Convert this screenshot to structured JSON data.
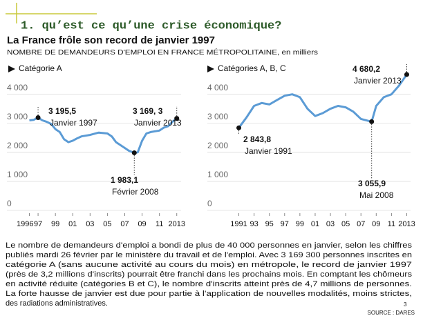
{
  "slide_title": "1. qu’est ce qu’une crise économique?",
  "heading": "La France frôle son record de janvier 1997",
  "subtitle": "NOMBRE DE DEMANDEURS D'EMPLOI EN FRANCE MÉTROPOLITAINE, en milliers",
  "paragraph": [
    "Le nombre de demandeurs d'emploi a bondi de plus de 40 000 personnes en janvier, selon les chiffres",
    "publiés mardi 26 février par le ministère du travail et de l'emploi. Avec 3 169 300 personnes inscrites en",
    "catégorie A (sans aucune activité au cours du mois) en métropole, le record de janvier 1997",
    "(près de 3,2 millions d'inscrits) pourrait être franchi dans les prochains mois. En comptant les chômeurs",
    "en activité réduite (catégories B et C), le nombre d'inscrits atteint près de 4,7 millions de personnes.",
    "La forte hausse de janvier est due pour partie à l'application de nouvelles modalités, moins strictes,",
    "des radiations administratives."
  ],
  "source": "SOURCE : DARES",
  "page_number": "3",
  "chart_data": [
    {
      "type": "line",
      "title": "Catégorie A",
      "color": "#5b9bd5",
      "x": [
        1996,
        1996.5,
        1997,
        1997.5,
        1998,
        1998.5,
        1999,
        1999.5,
        2000,
        2000.5,
        2001,
        2001.5,
        2002,
        2003,
        2004,
        2005,
        2005.5,
        2006,
        2007,
        2007.5,
        2008.1,
        2008.5,
        2009,
        2009.5,
        2010,
        2011,
        2011.5,
        2012,
        2012.5,
        2013
      ],
      "values": [
        3100,
        3120,
        3195.5,
        3100,
        3050,
        2980,
        2800,
        2700,
        2450,
        2350,
        2400,
        2480,
        2550,
        2600,
        2680,
        2650,
        2550,
        2350,
        2150,
        2050,
        1983.1,
        2000,
        2400,
        2650,
        2700,
        2750,
        2850,
        2900,
        3050,
        3169.3
      ],
      "xlim": [
        1995,
        2013.5
      ],
      "ylim": [
        0,
        4800
      ],
      "xticks": [
        1996,
        {
          "value": 1997,
          "label": "97"
        },
        {
          "value": 1999,
          "label": "99"
        },
        {
          "value": 2001,
          "label": "01"
        },
        {
          "value": 2003,
          "label": "03"
        },
        {
          "value": 2005,
          "label": "05"
        },
        {
          "value": 2007,
          "label": "07"
        },
        {
          "value": 2009,
          "label": "09"
        },
        {
          "value": 2011,
          "label": "11"
        },
        2013
      ],
      "yticks": [
        0,
        {
          "value": 1000,
          "label": "1 000"
        },
        {
          "value": 2000,
          "label": "2 000"
        },
        {
          "value": 3000,
          "label": "3 000"
        },
        {
          "value": 4000,
          "label": "4 000"
        }
      ],
      "annotations": [
        {
          "x": 1997,
          "value": 3195.5,
          "value_label": "3 195,5",
          "text": "Janvier 1997"
        },
        {
          "x": 2013,
          "value": 3169.3,
          "value_label": "3 169, 3",
          "text": "Janvier 2013"
        },
        {
          "x": 2008.1,
          "value": 1983.1,
          "value_label": "1 983,1",
          "text": "Février 2008"
        }
      ]
    },
    {
      "type": "line",
      "title": "Catégories A, B, C",
      "color": "#5b9bd5",
      "x": [
        1991,
        1992,
        1993,
        1994,
        1995,
        1996,
        1997,
        1998,
        1999,
        2000,
        2001,
        2002,
        2003,
        2004,
        2005,
        2006,
        2007,
        2008.4,
        2009,
        2010,
        2011,
        2012,
        2013
      ],
      "values": [
        2843.8,
        3200,
        3600,
        3700,
        3650,
        3800,
        3950,
        4000,
        3900,
        3500,
        3250,
        3350,
        3500,
        3600,
        3550,
        3400,
        3150,
        3055.9,
        3600,
        3900,
        4000,
        4300,
        4680.2
      ],
      "xlim": [
        1990.5,
        2013.5
      ],
      "ylim": [
        0,
        4800
      ],
      "xticks": [
        1991,
        {
          "value": 1993,
          "label": "93"
        },
        {
          "value": 1995,
          "label": "95"
        },
        {
          "value": 1997,
          "label": "97"
        },
        {
          "value": 1999,
          "label": "99"
        },
        {
          "value": 2001,
          "label": "01"
        },
        {
          "value": 2003,
          "label": "03"
        },
        {
          "value": 2005,
          "label": "05"
        },
        {
          "value": 2007,
          "label": "07"
        },
        {
          "value": 2009,
          "label": "09"
        },
        {
          "value": 2011,
          "label": "11"
        },
        2013
      ],
      "yticks": [
        0,
        {
          "value": 1000,
          "label": "1 000"
        },
        {
          "value": 2000,
          "label": "2 000"
        },
        {
          "value": 3000,
          "label": "3 000"
        },
        {
          "value": 4000,
          "label": "4 000"
        }
      ],
      "annotations": [
        {
          "x": 2013,
          "value": 4680.2,
          "value_label": "4 680,2",
          "text": "Janvier 2013"
        },
        {
          "x": 1991,
          "value": 2843.8,
          "value_label": "2 843,8",
          "text": "Janvier 1991"
        },
        {
          "x": 2008.4,
          "value": 3055.9,
          "value_label": "3 055,9",
          "text": "Mai 2008"
        }
      ]
    }
  ]
}
